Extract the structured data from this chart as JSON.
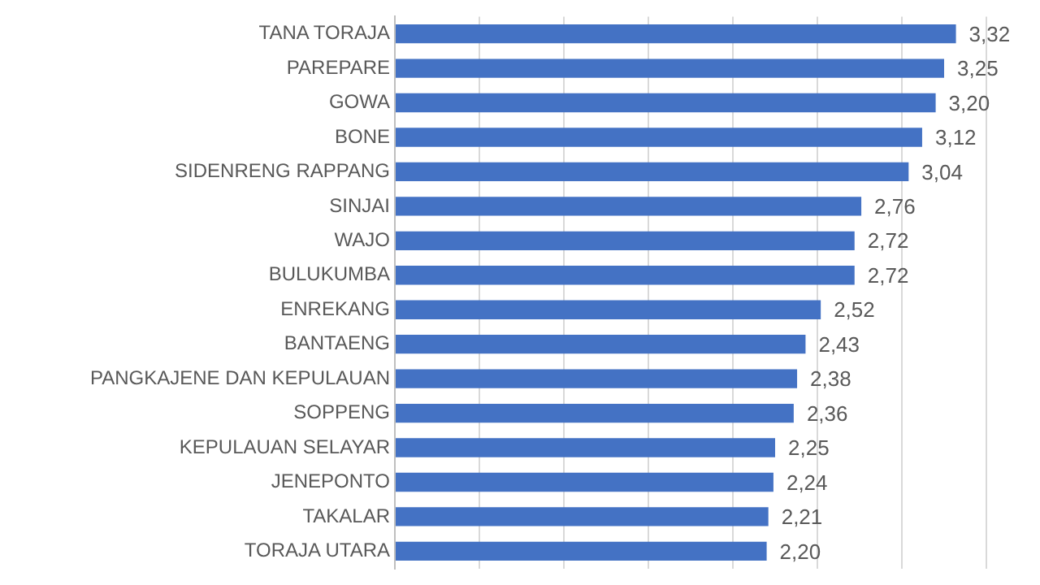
{
  "chart_data": {
    "type": "bar",
    "orientation": "horizontal",
    "categories": [
      "TANA TORAJA",
      "PAREPARE",
      "GOWA",
      "BONE",
      "SIDENRENG RAPPANG",
      "SINJAI",
      "WAJO",
      "BULUKUMBA",
      "ENREKANG",
      "BANTAENG",
      "PANGKAJENE DAN KEPULAUAN",
      "SOPPENG",
      "KEPULAUAN SELAYAR",
      "JENEPONTO",
      "TAKALAR",
      "TORAJA UTARA"
    ],
    "values": [
      3.32,
      3.25,
      3.2,
      3.12,
      3.04,
      2.76,
      2.72,
      2.72,
      2.52,
      2.43,
      2.38,
      2.36,
      2.25,
      2.24,
      2.21,
      2.2
    ],
    "color": "#4472c4",
    "value_labels": [
      "3,32",
      "3,25",
      "3,20",
      "3,12",
      "3,04",
      "2,76",
      "2,72",
      "2,72",
      "2,52",
      "2,43",
      "2,38",
      "2,36",
      "2,25",
      "2,24",
      "2,21",
      "2,20"
    ],
    "grid": "x",
    "tick_labels": "y",
    "legend": false
  }
}
